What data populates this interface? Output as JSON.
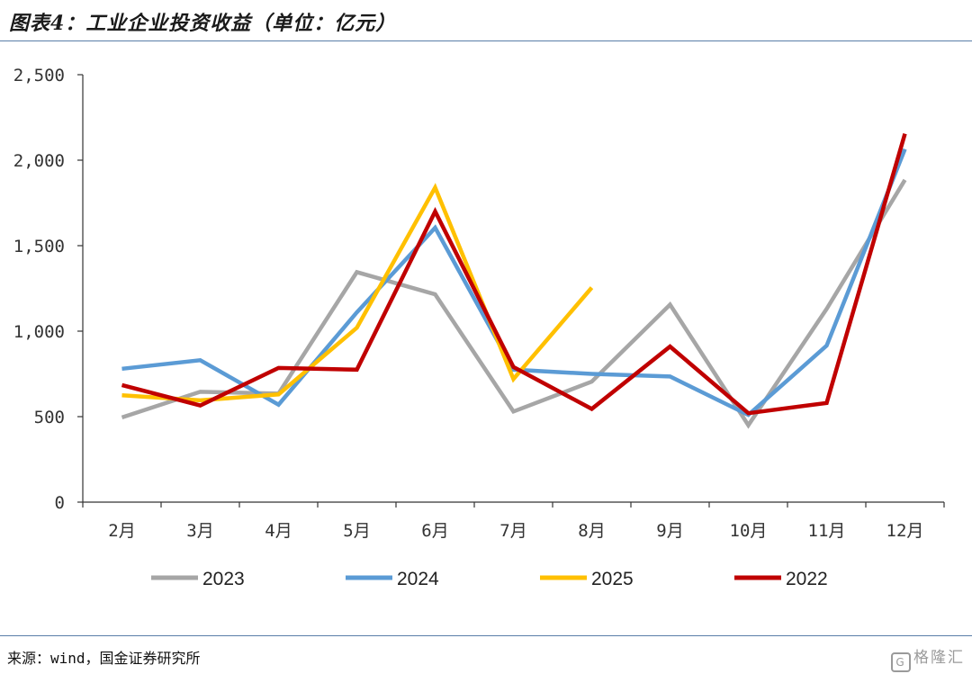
{
  "header": {
    "title": "图表4：工业企业投资收益（单位：亿元）"
  },
  "footer": {
    "source": "来源：wind，国金证券研究所",
    "watermark": "格隆汇"
  },
  "colors": {
    "rule": "#5a7ea8",
    "axis": "#333333"
  },
  "chart_data": {
    "type": "line",
    "title": "",
    "xlabel": "",
    "ylabel": "",
    "categories": [
      "2月",
      "3月",
      "4月",
      "5月",
      "6月",
      "7月",
      "8月",
      "9月",
      "10月",
      "11月",
      "12月"
    ],
    "ylim": [
      0,
      2500
    ],
    "yticks": [
      0,
      500,
      1000,
      1500,
      2000,
      2500
    ],
    "ytick_labels": [
      "0",
      "500",
      "1,000",
      "1,500",
      "2,000",
      "2,500"
    ],
    "grid": false,
    "legend_position": "bottom",
    "series": [
      {
        "name": "2023",
        "color": "#a6a6a6",
        "values": [
          495,
          645,
          635,
          1345,
          1215,
          530,
          705,
          1155,
          450,
          1130,
          1885
        ]
      },
      {
        "name": "2024",
        "color": "#5b9bd5",
        "values": [
          780,
          830,
          570,
          1110,
          1605,
          775,
          750,
          735,
          510,
          915,
          2065
        ]
      },
      {
        "name": "2025",
        "color": "#ffc000",
        "values": [
          625,
          595,
          630,
          1020,
          1840,
          720,
          1255,
          null,
          null,
          null,
          null
        ]
      },
      {
        "name": "2022",
        "color": "#c00000",
        "values": [
          685,
          565,
          785,
          775,
          1700,
          790,
          545,
          910,
          520,
          580,
          2155
        ]
      }
    ]
  }
}
